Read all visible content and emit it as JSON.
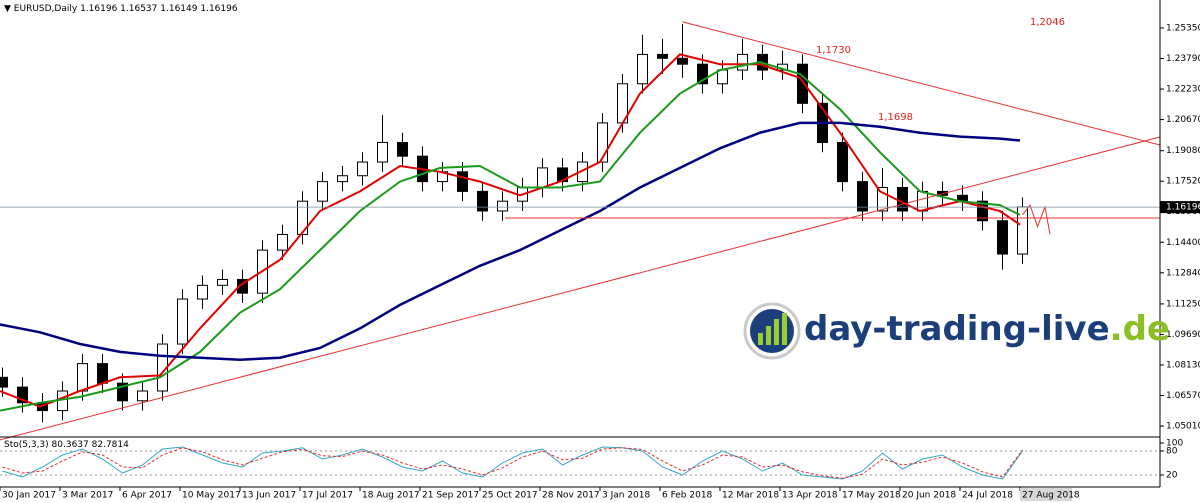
{
  "header": {
    "symbol": "EURUSD,Daily",
    "open": 1.16196,
    "high": 1.16537,
    "low": 1.16149,
    "close": 1.16196
  },
  "watermark": [
    "day-trading-live",
    ".de"
  ],
  "chart_data": [
    {
      "type": "candlestick",
      "x": [
        1,
        9,
        17,
        25,
        33,
        41,
        49,
        57,
        65,
        73,
        81,
        89,
        97,
        105,
        113,
        121,
        129,
        137,
        145,
        153,
        161,
        169,
        177,
        185,
        193,
        201,
        209,
        217,
        225,
        233,
        241,
        249,
        257,
        265,
        273,
        281,
        289,
        297,
        305,
        313,
        321,
        329,
        337,
        345,
        353,
        361,
        369,
        377,
        385,
        393,
        401,
        409
      ],
      "open": [
        1.075,
        1.07,
        1.062,
        1.058,
        1.068,
        1.082,
        1.072,
        1.063,
        1.068,
        1.092,
        1.115,
        1.122,
        1.125,
        1.118,
        1.14,
        1.148,
        1.165,
        1.175,
        1.178,
        1.185,
        1.195,
        1.188,
        1.175,
        1.18,
        1.17,
        1.16,
        1.165,
        1.172,
        1.182,
        1.175,
        1.185,
        1.205,
        1.225,
        1.24,
        1.238,
        1.235,
        1.225,
        1.232,
        1.24,
        1.232,
        1.235,
        1.215,
        1.195,
        1.175,
        1.16,
        1.172,
        1.16,
        1.17,
        1.168,
        1.165,
        1.155,
        1.138
      ],
      "high": [
        1.08,
        1.075,
        1.067,
        1.073,
        1.087,
        1.087,
        1.077,
        1.073,
        1.097,
        1.12,
        1.127,
        1.13,
        1.13,
        1.145,
        1.153,
        1.17,
        1.18,
        1.183,
        1.19,
        1.209,
        1.2,
        1.193,
        1.185,
        1.185,
        1.175,
        1.17,
        1.177,
        1.187,
        1.187,
        1.19,
        1.21,
        1.23,
        1.25,
        1.248,
        1.2555,
        1.24,
        1.237,
        1.248,
        1.245,
        1.242,
        1.24,
        1.22,
        1.2,
        1.18,
        1.182,
        1.177,
        1.175,
        1.175,
        1.173,
        1.17,
        1.16,
        1.167
      ],
      "low": [
        1.065,
        1.057,
        1.052,
        1.053,
        1.063,
        1.067,
        1.058,
        1.058,
        1.063,
        1.087,
        1.11,
        1.117,
        1.113,
        1.113,
        1.135,
        1.143,
        1.16,
        1.17,
        1.173,
        1.18,
        1.183,
        1.17,
        1.17,
        1.165,
        1.155,
        1.155,
        1.16,
        1.167,
        1.17,
        1.17,
        1.18,
        1.2,
        1.22,
        1.23,
        1.228,
        1.22,
        1.22,
        1.227,
        1.227,
        1.227,
        1.21,
        1.19,
        1.17,
        1.155,
        1.155,
        1.155,
        1.155,
        1.163,
        1.16,
        1.15,
        1.13,
        1.133
      ],
      "close": [
        1.07,
        1.062,
        1.058,
        1.068,
        1.082,
        1.072,
        1.063,
        1.068,
        1.092,
        1.115,
        1.122,
        1.125,
        1.118,
        1.14,
        1.148,
        1.165,
        1.175,
        1.178,
        1.185,
        1.195,
        1.188,
        1.175,
        1.18,
        1.17,
        1.16,
        1.165,
        1.172,
        1.182,
        1.175,
        1.185,
        1.205,
        1.225,
        1.24,
        1.238,
        1.235,
        1.225,
        1.232,
        1.24,
        1.232,
        1.235,
        1.215,
        1.195,
        1.175,
        1.16,
        1.172,
        1.16,
        1.17,
        1.168,
        1.165,
        1.155,
        1.138,
        1.162
      ],
      "series": [
        {
          "color": "#e00000",
          "x": [
            0,
            16,
            32,
            48,
            64,
            80,
            96,
            112,
            128,
            144,
            160,
            176,
            192,
            208,
            224,
            240,
            256,
            272,
            288,
            304,
            320,
            336,
            352,
            368,
            384,
            400,
            408
          ],
          "values": [
            1.068,
            1.06,
            1.068,
            1.075,
            1.076,
            1.1,
            1.122,
            1.135,
            1.16,
            1.17,
            1.183,
            1.18,
            1.175,
            1.168,
            1.175,
            1.185,
            1.22,
            1.24,
            1.235,
            1.235,
            1.228,
            1.2,
            1.17,
            1.16,
            1.165,
            1.16,
            1.153
          ]
        },
        {
          "color": "#1a9a1a",
          "x": [
            0,
            16,
            32,
            48,
            64,
            80,
            96,
            112,
            128,
            144,
            160,
            176,
            192,
            208,
            224,
            240,
            256,
            272,
            288,
            304,
            320,
            336,
            352,
            368,
            384,
            400,
            408
          ],
          "values": [
            1.058,
            1.062,
            1.065,
            1.07,
            1.075,
            1.088,
            1.108,
            1.12,
            1.14,
            1.16,
            1.175,
            1.182,
            1.183,
            1.172,
            1.172,
            1.175,
            1.2,
            1.22,
            1.232,
            1.236,
            1.23,
            1.212,
            1.19,
            1.17,
            1.165,
            1.163,
            1.158
          ]
        },
        {
          "color": "#000080",
          "x": [
            0,
            16,
            32,
            48,
            64,
            80,
            96,
            112,
            128,
            144,
            160,
            176,
            192,
            208,
            224,
            240,
            256,
            272,
            288,
            304,
            320,
            336,
            352,
            368,
            384,
            400,
            408
          ],
          "values": [
            1.102,
            1.098,
            1.092,
            1.088,
            1.086,
            1.085,
            1.084,
            1.085,
            1.09,
            1.1,
            1.112,
            1.122,
            1.132,
            1.14,
            1.15,
            1.16,
            1.172,
            1.182,
            1.192,
            1.2,
            1.205,
            1.205,
            1.203,
            1.2,
            1.198,
            1.197,
            1.196
          ]
        }
      ],
      "trendlines": [
        {
          "x": [
            0,
            464
          ],
          "y": [
            1.043,
            1.1978
          ]
        },
        {
          "x": [
            273,
            464
          ],
          "y": [
            1.2566,
            1.1937
          ]
        },
        {
          "x": [
            202,
            464
          ],
          "y": [
            1.1564,
            1.1564
          ]
        },
        {
          "x": [
            409,
            412,
            415,
            418,
            420
          ],
          "y": [
            1.158,
            1.163,
            1.152,
            1.162,
            1.148
          ]
        }
      ],
      "annotations": [
        "1,2046",
        "1,1730",
        "1,1698"
      ],
      "xlim": [
        0,
        464
      ],
      "ylim": [
        1.0445,
        1.2678
      ],
      "yticks": [
        {
          "value": 1.2535,
          "label": "1.25350"
        },
        {
          "value": 1.2379,
          "label": "1.23790"
        },
        {
          "value": 1.2223,
          "label": "1.22230"
        },
        {
          "value": 1.2067,
          "label": "1.20670"
        },
        {
          "value": 1.1908,
          "label": "1.19080"
        },
        {
          "value": 1.1752,
          "label": "1.17520"
        },
        {
          "value": 1.1596,
          "label": "1.15960"
        },
        {
          "value": 1.144,
          "label": "1.14400"
        },
        {
          "value": 1.1284,
          "label": "1.12840"
        },
        {
          "value": 1.1125,
          "label": "1.11250"
        },
        {
          "value": 1.0969,
          "label": "1.09690"
        },
        {
          "value": 1.0813,
          "label": "1.08130"
        },
        {
          "value": 1.0657,
          "label": "1.06570"
        },
        {
          "value": 1.0501,
          "label": "1.05010"
        }
      ]
    },
    {
      "type": "line",
      "title": "Sto(5,3,3)",
      "x": [
        1,
        9,
        17,
        25,
        33,
        41,
        49,
        57,
        65,
        73,
        81,
        89,
        97,
        105,
        113,
        121,
        129,
        137,
        145,
        153,
        161,
        169,
        177,
        185,
        193,
        201,
        209,
        217,
        225,
        233,
        241,
        249,
        257,
        265,
        273,
        281,
        289,
        297,
        305,
        313,
        321,
        329,
        337,
        345,
        353,
        361,
        369,
        377,
        385,
        393,
        401,
        409
      ],
      "series": [
        {
          "color": "#35a7c4",
          "values": [
            30,
            15,
            40,
            70,
            85,
            60,
            25,
            45,
            85,
            90,
            70,
            50,
            40,
            75,
            80,
            88,
            60,
            70,
            85,
            65,
            40,
            30,
            55,
            25,
            15,
            50,
            75,
            85,
            45,
            70,
            90,
            88,
            80,
            40,
            20,
            55,
            80,
            60,
            30,
            50,
            20,
            15,
            10,
            30,
            75,
            35,
            60,
            70,
            40,
            20,
            10,
            80.3637
          ]
        },
        {
          "color": "#e03030",
          "values": [
            40,
            25,
            30,
            55,
            78,
            70,
            40,
            38,
            70,
            88,
            78,
            58,
            45,
            62,
            78,
            84,
            68,
            66,
            80,
            70,
            50,
            35,
            45,
            35,
            20,
            38,
            65,
            80,
            58,
            62,
            85,
            88,
            84,
            55,
            30,
            45,
            70,
            65,
            40,
            45,
            28,
            18,
            12,
            22,
            60,
            45,
            52,
            65,
            50,
            28,
            15,
            82.7814
          ]
        }
      ],
      "levels": [
        80,
        20
      ],
      "xlim": [
        0,
        464
      ],
      "ylim": [
        0,
        100
      ],
      "yticks": [
        20,
        80,
        100
      ],
      "xticks": [
        {
          "value": 0,
          "label": "30 Jan 2017"
        },
        {
          "value": 24,
          "label": "3 Mar 2017"
        },
        {
          "value": 48,
          "label": "6 Apr 2017"
        },
        {
          "value": 72,
          "label": "10 May 2017"
        },
        {
          "value": 96,
          "label": "13 Jun 2017"
        },
        {
          "value": 120,
          "label": "17 Jul 2017"
        },
        {
          "value": 144,
          "label": "18 Aug 2017"
        },
        {
          "value": 168,
          "label": "21 Sep 2017"
        },
        {
          "value": 192,
          "label": "25 Oct 2017"
        },
        {
          "value": 216,
          "label": "28 Nov 2017"
        },
        {
          "value": 240,
          "label": "3 Jan 2018"
        },
        {
          "value": 264,
          "label": "6 Feb 2018"
        },
        {
          "value": 288,
          "label": "12 Mar 2018"
        },
        {
          "value": 312,
          "label": "13 Apr 2018"
        },
        {
          "value": 336,
          "label": "17 May 2018"
        },
        {
          "value": 360,
          "label": "20 Jun 2018"
        },
        {
          "value": 384,
          "label": "24 Jul 2018"
        },
        {
          "value": 408,
          "label": "27 Aug 2018"
        }
      ]
    }
  ]
}
